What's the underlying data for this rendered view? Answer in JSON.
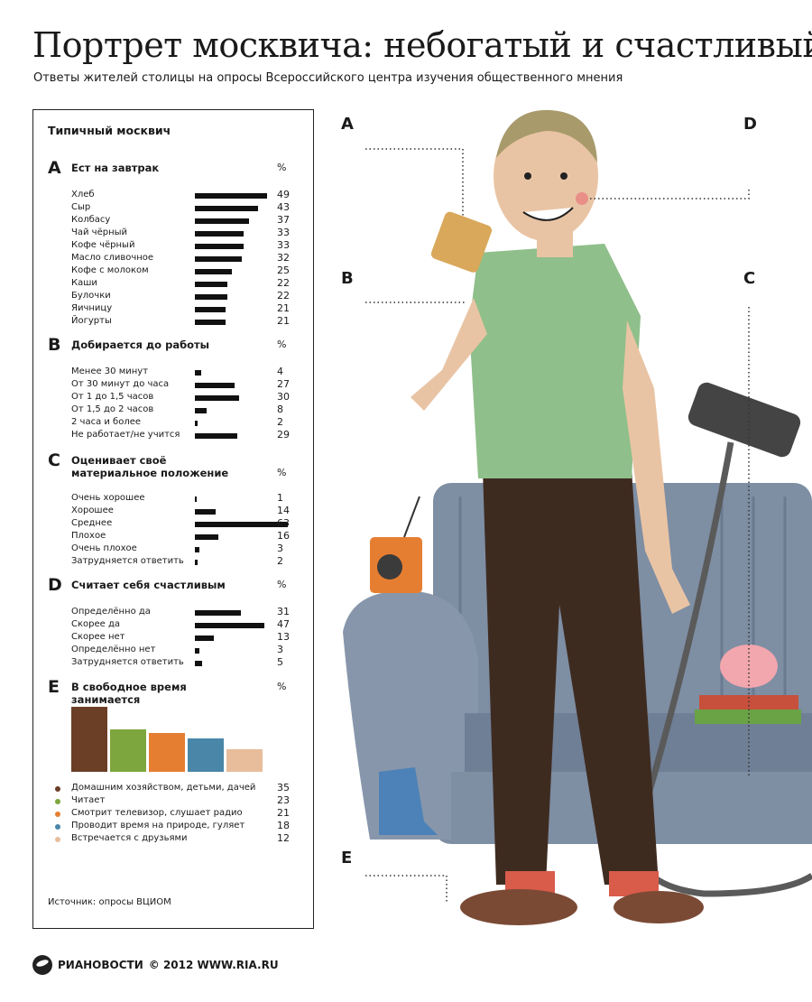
{
  "title": "Портрет москвича: небогатый и счастливый",
  "subtitle": "Ответы жителей столицы на опросы Всероссийского центра изучения общественного мнения",
  "panel": {
    "heading": "Типичный москвич",
    "source": "Источник: опросы ВЦИОМ"
  },
  "footer": {
    "logo": "РИАНОВОСТИ",
    "copyright": "© 2012 WWW.RIA.RU"
  },
  "callouts": [
    "A",
    "B",
    "C",
    "D",
    "E"
  ],
  "chart_data": [
    {
      "type": "bar",
      "letter": "A",
      "title": "Ест на завтрак",
      "unit": "%",
      "categories": [
        "Хлеб",
        "Сыр",
        "Колбасу",
        "Чай чёрный",
        "Кофе чёрный",
        "Масло сливочное",
        "Кофе с молоком",
        "Каши",
        "Булочки",
        "Яичницу",
        "Йогурты"
      ],
      "values": [
        49,
        43,
        37,
        33,
        33,
        32,
        25,
        22,
        22,
        21,
        21
      ]
    },
    {
      "type": "bar",
      "letter": "B",
      "title": "Добирается до работы",
      "unit": "%",
      "categories": [
        "Менее 30 минут",
        "От 30 минут до часа",
        "От 1 до 1,5 часов",
        "От 1,5 до 2 часов",
        "2 часа и более",
        "Не работает/не учится"
      ],
      "values": [
        4,
        27,
        30,
        8,
        2,
        29
      ]
    },
    {
      "type": "bar",
      "letter": "C",
      "title": "Оценивает своё материальное положение",
      "unit": "%",
      "categories": [
        "Очень хорошее",
        "Хорошее",
        "Среднее",
        "Плохое",
        "Очень плохое",
        "Затрудняется ответить"
      ],
      "values": [
        1,
        14,
        63,
        16,
        3,
        2
      ]
    },
    {
      "type": "bar",
      "letter": "D",
      "title": "Считает себя счастливым",
      "unit": "%",
      "categories": [
        "Определённо да",
        "Скорее да",
        "Скорее нет",
        "Определённо нет",
        "Затрудняется ответить"
      ],
      "values": [
        31,
        47,
        13,
        3,
        5
      ]
    },
    {
      "type": "bar",
      "letter": "E",
      "title": "В свободное время занимается",
      "unit": "%",
      "categories": [
        "Домашним хозяйством, детьми, дачей",
        "Читает",
        "Смотрит телевизор, слушает радио",
        "Проводит время на природе, гуляет",
        "Встречается с друзьями"
      ],
      "values": [
        35,
        23,
        21,
        18,
        12
      ],
      "colors": [
        "#6b3e26",
        "#7ea63e",
        "#e67e32",
        "#4a86a8",
        "#e8bd9b"
      ]
    }
  ]
}
